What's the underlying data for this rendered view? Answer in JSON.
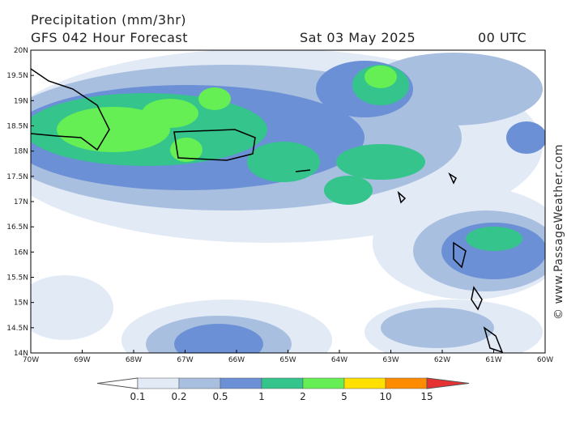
{
  "header": {
    "title": "Precipitation (mm/3hr)",
    "subtitle": "GFS 042 Hour Forecast",
    "date": "Sat 03 May 2025",
    "time": "00 UTC"
  },
  "map": {
    "lat_labels": [
      "20N",
      "19.5N",
      "19N",
      "18.5N",
      "18N",
      "17.5N",
      "17N",
      "16.5N",
      "16N",
      "15.5N",
      "15N",
      "14.5N",
      "14N"
    ],
    "lon_labels": [
      "70W",
      "69W",
      "68W",
      "67W",
      "66W",
      "65W",
      "64W",
      "63W",
      "62W",
      "61W",
      "60W"
    ]
  },
  "legend": {
    "labels": [
      "0.1",
      "0.2",
      "0.5",
      "1",
      "2",
      "5",
      "10",
      "15"
    ],
    "colors": [
      "#ffffff",
      "#e2eaf6",
      "#a9bfe0",
      "#6c90d6",
      "#34c48c",
      "#66ee55",
      "#ffe000",
      "#ff8c00",
      "#e63232"
    ]
  },
  "credit": "© www.PassageWeather.com"
}
